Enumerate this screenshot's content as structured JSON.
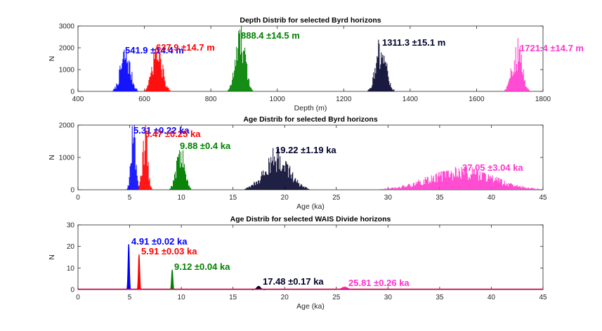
{
  "chart_data": [
    {
      "type": "histogram",
      "title": "Depth Distrib for selected Byrd horizons",
      "xlabel": "Depth (m)",
      "ylabel": "N",
      "xlim": [
        400,
        1800
      ],
      "ylim": [
        0,
        3000
      ],
      "xticks": [
        "400",
        "600",
        "800",
        "1000",
        "1200",
        "1400",
        "1600",
        "1800"
      ],
      "yticks": [
        "0",
        "1000",
        "2000",
        "3000"
      ],
      "grid": false,
      "series": [
        {
          "color": "#0000ff",
          "mean": 541.9,
          "std": 14.4,
          "peak": 1900,
          "annotation": "541.9 ±14.4 m"
        },
        {
          "color": "#ff0000",
          "mean": 637.9,
          "std": 14.7,
          "peak": 2000,
          "annotation": "637.9 ±14.7 m"
        },
        {
          "color": "#008000",
          "mean": 888.4,
          "std": 14.5,
          "peak": 2700,
          "annotation": "888.4 ±14.5 m"
        },
        {
          "color": "#00002b",
          "mean": 1311.3,
          "std": 15.1,
          "peak": 2300,
          "annotation": "1311.3 ±15.1 m"
        },
        {
          "color": "#ff33cc",
          "mean": 1721.4,
          "std": 14.7,
          "peak": 2100,
          "annotation": "1721.4 ±14.7 m"
        }
      ]
    },
    {
      "type": "histogram",
      "title": "Age Distrib for selected Byrd horizons",
      "xlabel": "Age (ka)",
      "ylabel": "N",
      "xlim": [
        0,
        45
      ],
      "ylim": [
        0,
        2000
      ],
      "xticks": [
        "0",
        "5",
        "10",
        "15",
        "20",
        "25",
        "30",
        "35",
        "40",
        "45"
      ],
      "yticks": [
        "0",
        "1000",
        "2000"
      ],
      "grid": false,
      "series": [
        {
          "color": "#0000ff",
          "mean": 5.31,
          "std": 0.22,
          "peak": 1900,
          "annotation": "5.31 ±0.22 ka"
        },
        {
          "color": "#ff0000",
          "mean": 6.47,
          "std": 0.25,
          "peak": 1800,
          "annotation": "6.47 ±0.25 ka"
        },
        {
          "color": "#008000",
          "mean": 9.88,
          "std": 0.4,
          "peak": 1300,
          "annotation": "9.88 ±0.4 ka"
        },
        {
          "color": "#00002b",
          "mean": 19.22,
          "std": 1.19,
          "peak": 1150,
          "annotation": "19.22 ±1.19 ka"
        },
        {
          "color": "#ff33cc",
          "mean": 37.05,
          "std": 3.04,
          "peak": 650,
          "annotation": "37.05 ±3.04 ka"
        }
      ]
    },
    {
      "type": "line",
      "title": "Age Distrib for selected WAIS Divide horizons",
      "xlabel": "Age (ka)",
      "ylabel": "N",
      "xlim": [
        0,
        45
      ],
      "ylim": [
        0,
        30
      ],
      "xticks": [
        "0",
        "5",
        "10",
        "15",
        "20",
        "25",
        "30",
        "35",
        "40",
        "45"
      ],
      "yticks": [
        "0",
        "10",
        "20",
        "30"
      ],
      "grid": false,
      "series": [
        {
          "color": "#0000ff",
          "mean": 4.91,
          "std": 0.02,
          "peak": 21,
          "annotation": "4.91 ±0.02 ka"
        },
        {
          "color": "#ff0000",
          "mean": 5.91,
          "std": 0.03,
          "peak": 16,
          "annotation": "5.91 ±0.03 ka"
        },
        {
          "color": "#008000",
          "mean": 9.12,
          "std": 0.04,
          "peak": 9,
          "annotation": "9.12 ±0.04 ka"
        },
        {
          "color": "#00002b",
          "mean": 17.48,
          "std": 0.17,
          "peak": 1.5,
          "annotation": "17.48 ±0.17 ka"
        },
        {
          "color": "#ff33cc",
          "mean": 25.81,
          "std": 0.26,
          "peak": 1.2,
          "annotation": "25.81 ±0.26 ka"
        }
      ]
    }
  ]
}
